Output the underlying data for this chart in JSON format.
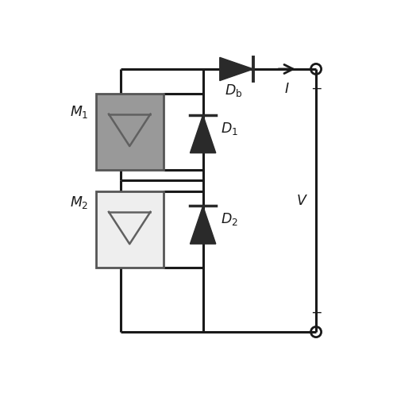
{
  "bg_color": "#ffffff",
  "line_color": "#1a1a1a",
  "diode_fill": "#2a2a2a",
  "m1_fill": "#999999",
  "m2_fill": "#eeeeee",
  "module_border": "#555555",
  "line_width": 2.2,
  "fig_width": 4.95,
  "fig_height": 5.0,
  "xlim": [
    0,
    9.5
  ],
  "ylim": [
    0,
    10
  ]
}
